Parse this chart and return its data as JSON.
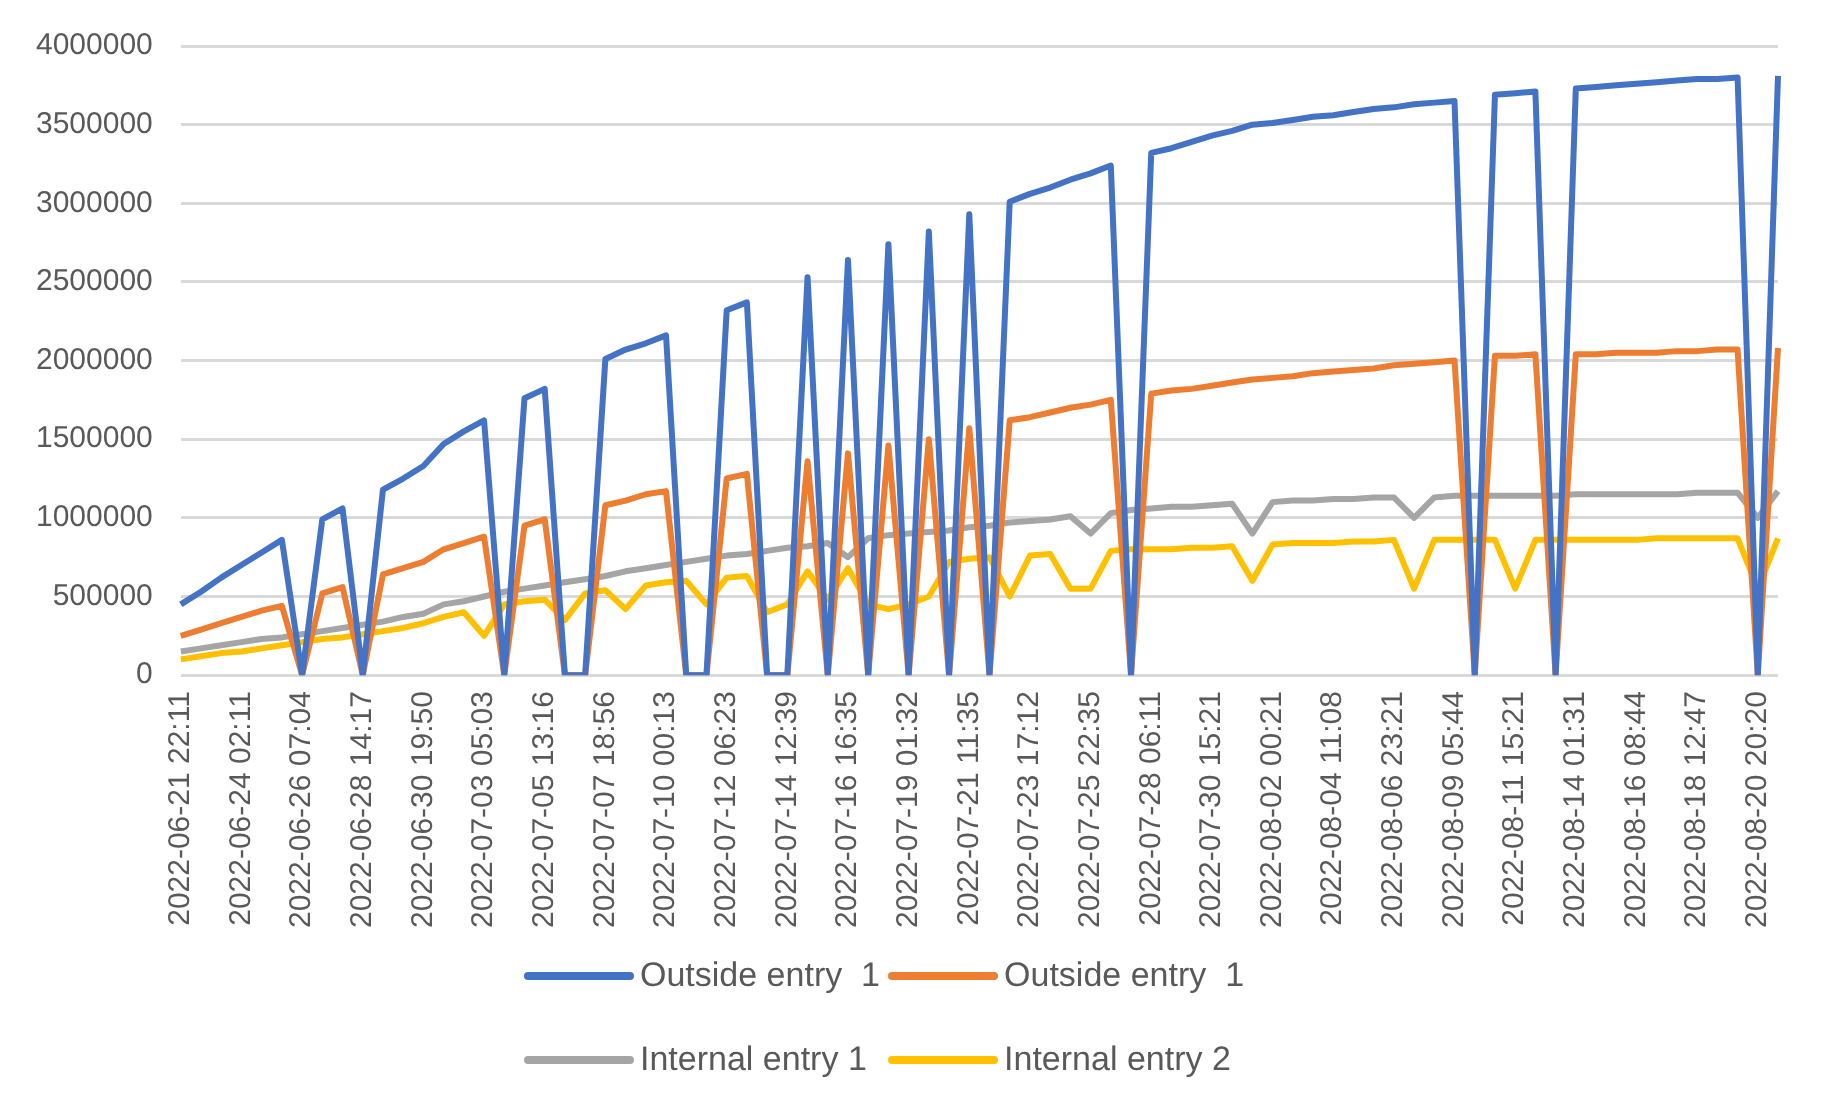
{
  "chart_data": {
    "type": "line",
    "categories": [
      "2022-06-21 22:11",
      null,
      null,
      "2022-06-24 02:11",
      null,
      null,
      "2022-06-26 07:04",
      null,
      null,
      "2022-06-28 14:17",
      null,
      null,
      "2022-06-30 19:50",
      null,
      null,
      "2022-07-03 05:03",
      null,
      null,
      "2022-07-05 13:16",
      null,
      null,
      "2022-07-07 18:56",
      null,
      null,
      "2022-07-10 00:13",
      null,
      null,
      "2022-07-12 06:23",
      null,
      null,
      "2022-07-14 12:39",
      null,
      null,
      "2022-07-16 16:35",
      null,
      null,
      "2022-07-19 01:32",
      null,
      null,
      "2022-07-21 11:35",
      null,
      null,
      "2022-07-23 17:12",
      null,
      null,
      "2022-07-25 22:35",
      null,
      null,
      "2022-07-28 06:11",
      null,
      null,
      "2022-07-30 15:21",
      null,
      null,
      "2022-08-02 00:21",
      null,
      null,
      "2022-08-04 11:08",
      null,
      null,
      "2022-08-06 23:21",
      null,
      null,
      "2022-08-09 05:44",
      null,
      null,
      "2022-08-11 15:21",
      null,
      null,
      "2022-08-14 01:31",
      null,
      null,
      "2022-08-16 08:44",
      null,
      null,
      "2022-08-18 12:47",
      null,
      null,
      "2022-08-20 20:20",
      null
    ],
    "series": [
      {
        "name": "Outside entry  1",
        "color": "#4472c4",
        "values": [
          450000,
          530000,
          620000,
          700000,
          780000,
          860000,
          0,
          990000,
          1060000,
          0,
          1180000,
          1250000,
          1330000,
          1470000,
          1550000,
          1620000,
          0,
          1760000,
          1820000,
          0,
          0,
          2010000,
          2070000,
          2110000,
          2160000,
          0,
          0,
          2320000,
          2370000,
          0,
          0,
          2530000,
          0,
          2640000,
          0,
          2740000,
          0,
          2820000,
          0,
          2930000,
          0,
          3010000,
          3060000,
          3100000,
          3150000,
          3190000,
          3240000,
          0,
          3320000,
          3350000,
          3390000,
          3430000,
          3460000,
          3500000,
          3510000,
          3530000,
          3550000,
          3560000,
          3580000,
          3600000,
          3610000,
          3630000,
          3640000,
          3650000,
          0,
          3690000,
          3700000,
          3710000,
          0,
          3730000,
          3740000,
          3750000,
          3760000,
          3770000,
          3780000,
          3790000,
          3790000,
          3800000,
          0,
          3810000
        ]
      },
      {
        "name": "Outside entry  1",
        "color": "#ed7d31",
        "values": [
          250000,
          290000,
          330000,
          370000,
          410000,
          440000,
          0,
          520000,
          560000,
          0,
          640000,
          680000,
          720000,
          800000,
          840000,
          880000,
          0,
          950000,
          990000,
          0,
          0,
          1080000,
          1110000,
          1150000,
          1170000,
          0,
          0,
          1250000,
          1280000,
          0,
          0,
          1360000,
          0,
          1410000,
          0,
          1460000,
          0,
          1500000,
          0,
          1570000,
          0,
          1620000,
          1640000,
          1670000,
          1700000,
          1720000,
          1750000,
          0,
          1790000,
          1810000,
          1820000,
          1840000,
          1860000,
          1880000,
          1890000,
          1900000,
          1920000,
          1930000,
          1940000,
          1950000,
          1970000,
          1980000,
          1990000,
          2000000,
          0,
          2030000,
          2030000,
          2040000,
          0,
          2040000,
          2040000,
          2050000,
          2050000,
          2050000,
          2060000,
          2060000,
          2070000,
          2070000,
          0,
          2080000
        ]
      },
      {
        "name": "Internal entry 1",
        "color": "#a5a5a5",
        "values": [
          150000,
          170000,
          190000,
          210000,
          230000,
          240000,
          260000,
          280000,
          300000,
          320000,
          340000,
          370000,
          390000,
          450000,
          470000,
          500000,
          530000,
          550000,
          570000,
          590000,
          610000,
          630000,
          660000,
          680000,
          700000,
          720000,
          740000,
          760000,
          770000,
          790000,
          810000,
          820000,
          840000,
          750000,
          870000,
          890000,
          900000,
          910000,
          920000,
          940000,
          950000,
          970000,
          980000,
          990000,
          1010000,
          900000,
          1030000,
          1050000,
          1060000,
          1070000,
          1070000,
          1080000,
          1090000,
          900000,
          1100000,
          1110000,
          1110000,
          1120000,
          1120000,
          1130000,
          1130000,
          1000000,
          1130000,
          1140000,
          1140000,
          1140000,
          1140000,
          1140000,
          1140000,
          1150000,
          1150000,
          1150000,
          1150000,
          1150000,
          1150000,
          1160000,
          1160000,
          1160000,
          1000000,
          1170000
        ]
      },
      {
        "name": "Internal entry 2",
        "color": "#ffc000",
        "values": [
          100000,
          120000,
          140000,
          150000,
          170000,
          190000,
          210000,
          230000,
          240000,
          260000,
          280000,
          300000,
          330000,
          370000,
          400000,
          250000,
          450000,
          470000,
          480000,
          350000,
          520000,
          540000,
          420000,
          570000,
          590000,
          600000,
          450000,
          620000,
          630000,
          400000,
          450000,
          660000,
          480000,
          680000,
          450000,
          420000,
          450000,
          500000,
          720000,
          740000,
          750000,
          500000,
          760000,
          770000,
          550000,
          550000,
          790000,
          800000,
          800000,
          800000,
          810000,
          810000,
          820000,
          600000,
          830000,
          840000,
          840000,
          840000,
          850000,
          850000,
          860000,
          550000,
          860000,
          860000,
          860000,
          860000,
          550000,
          860000,
          860000,
          860000,
          860000,
          860000,
          860000,
          870000,
          870000,
          870000,
          870000,
          870000,
          550000,
          870000
        ]
      }
    ],
    "ylim": [
      0,
      4000000
    ],
    "yticks": [
      0,
      500000,
      1000000,
      1500000,
      2000000,
      2500000,
      3000000,
      3500000,
      4000000
    ],
    "grid": "y",
    "legend": "bottom",
    "marker": "none",
    "line_style": "solid"
  }
}
